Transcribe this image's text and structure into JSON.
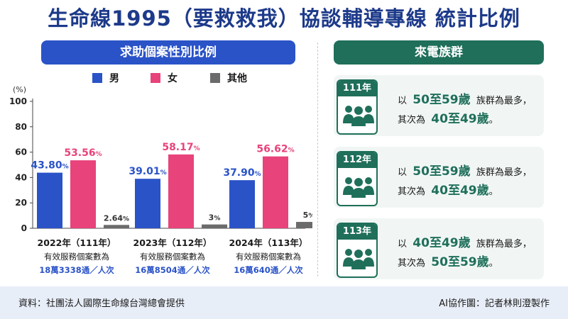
{
  "title": "生命線1995（要救救我）協談輔導專線 統計比例",
  "left_panel": {
    "header": "求助個案性別比例"
  },
  "right_panel": {
    "header": "來電族群",
    "cards": [
      {
        "year": "111年",
        "prefix": "以",
        "top_group": "50至59歲",
        "mid": "族群為最多，",
        "second_prefix": "其次為",
        "second_group": "40至49歲",
        "end": "。"
      },
      {
        "year": "112年",
        "prefix": "以",
        "top_group": "50至59歲",
        "mid": "族群為最多，",
        "second_prefix": "其次為",
        "second_group": "40至49歲",
        "end": "。"
      },
      {
        "year": "113年",
        "prefix": "以",
        "top_group": "40至49歲",
        "mid": "族群為最多，",
        "second_prefix": "其次為",
        "second_group": "50至59歲",
        "end": "。"
      }
    ]
  },
  "chart_data": {
    "type": "bar",
    "y_unit": "(%)",
    "ylim": [
      0,
      100
    ],
    "yticks": [
      0,
      20,
      40,
      60,
      80,
      100
    ],
    "legend": [
      "男",
      "女",
      "其他"
    ],
    "groups": [
      {
        "year_label": "2022年（111年）",
        "desc": "有效服務個案數為",
        "count": "18萬3338通／人次"
      },
      {
        "year_label": "2023年（112年）",
        "desc": "有效服務個案數為",
        "count": "16萬8504通／人次"
      },
      {
        "year_label": "2024年（113年）",
        "desc": "有效服務個案數為",
        "count": "16萬640通／人次"
      }
    ],
    "series": [
      {
        "name": "男",
        "color": "#2a53c8",
        "values": [
          43.8,
          39.01,
          37.9
        ],
        "labels": [
          "43.80%",
          "39.01%",
          "37.90%"
        ]
      },
      {
        "name": "女",
        "color": "#e8437b",
        "values": [
          53.56,
          58.17,
          56.62
        ],
        "labels": [
          "53.56%",
          "58.17%",
          "56.62%"
        ]
      },
      {
        "name": "其他",
        "color": "#6b6b6b",
        "values": [
          2.64,
          3,
          5
        ],
        "labels": [
          "2.64%",
          "3%",
          "5%"
        ]
      }
    ]
  },
  "footer": {
    "source": "資料：社團法人國際生命線台灣總會提供",
    "credit": "AI協作圖：記者林則澄製作"
  }
}
